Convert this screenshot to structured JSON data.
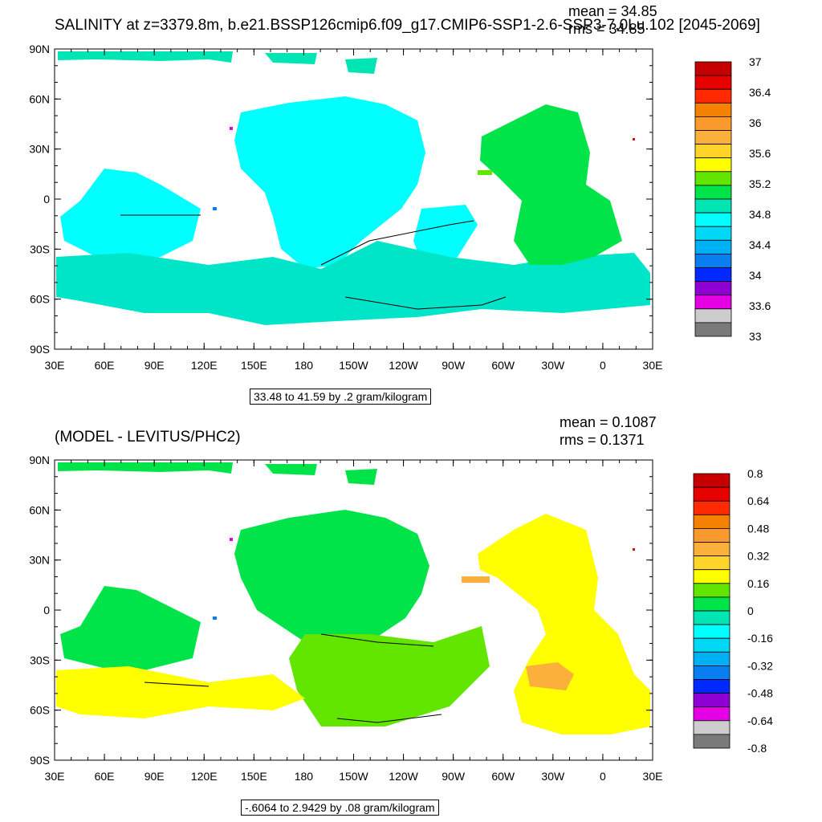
{
  "top_panel": {
    "title": "SALINITY at z=3379.8m, b.e21.BSSP126cmip6.f09_g17.CMIP6-SSP1-2.6-SSP3-7.0Lu.102 [2045-2069]",
    "mean_text": "mean = 34.85",
    "rms_text": "rms = 34.85",
    "info_box": "33.48 to 41.59 by .2 gram/kilogram",
    "lat_labels": [
      "90N",
      "60N",
      "30N",
      "0",
      "30S",
      "60S",
      "90S"
    ],
    "lon_labels": [
      "30E",
      "60E",
      "90E",
      "120E",
      "150E",
      "180",
      "150W",
      "120W",
      "90W",
      "60W",
      "30W",
      "0",
      "30E"
    ],
    "colorbar": {
      "colors": [
        "#c60000",
        "#e60000",
        "#ff2a00",
        "#f58100",
        "#fa9a2c",
        "#fbb03b",
        "#ffd42a",
        "#ffff00",
        "#62e600",
        "#00e44a",
        "#00e5b3",
        "#00ffff",
        "#00d8f5",
        "#00b0f4",
        "#0a7df0",
        "#0029ff",
        "#8f00d5",
        "#e600e6",
        "#cdcdcd",
        "#7a7a7a"
      ],
      "labels": [
        "37",
        "36.4",
        "36",
        "35.6",
        "35.2",
        "34.8",
        "34.4",
        "34",
        "33.6",
        "33"
      ]
    }
  },
  "bottom_panel": {
    "title": "(MODEL - LEVITUS/PHC2)",
    "mean_text": "mean = 0.1087",
    "rms_text": "rms = 0.1371",
    "info_box": "-.6064 to 2.9429 by .08 gram/kilogram",
    "lat_labels": [
      "90N",
      "60N",
      "30N",
      "0",
      "30S",
      "60S",
      "90S"
    ],
    "lon_labels": [
      "30E",
      "60E",
      "90E",
      "120E",
      "150E",
      "180",
      "150W",
      "120W",
      "90W",
      "60W",
      "30W",
      "0",
      "30E"
    ],
    "colorbar": {
      "colors": [
        "#c60000",
        "#e60000",
        "#ff2a00",
        "#f58100",
        "#fa9a2c",
        "#fbb03b",
        "#ffd42a",
        "#ffff00",
        "#62e600",
        "#00e44a",
        "#00e5b3",
        "#00ffff",
        "#00d8f5",
        "#00b0f4",
        "#0a7df0",
        "#0029ff",
        "#8f00d5",
        "#e600e6",
        "#cdcdcd",
        "#7a7a7a"
      ],
      "labels": [
        "0.8",
        "0.64",
        "0.48",
        "0.32",
        "0.16",
        "0",
        "-0.16",
        "-0.32",
        "-0.48",
        "-0.64",
        "-0.8"
      ]
    }
  },
  "fills": {
    "top_main": "#00ffff",
    "top_south": "#00e5c8",
    "top_atlantic": "#00e44a",
    "top_arctic": "#00e5b3",
    "bottom_main": "#00e44a",
    "bottom_south": "#62e600",
    "bottom_yellow": "#ffff00",
    "bottom_orange": "#fbb03b"
  }
}
